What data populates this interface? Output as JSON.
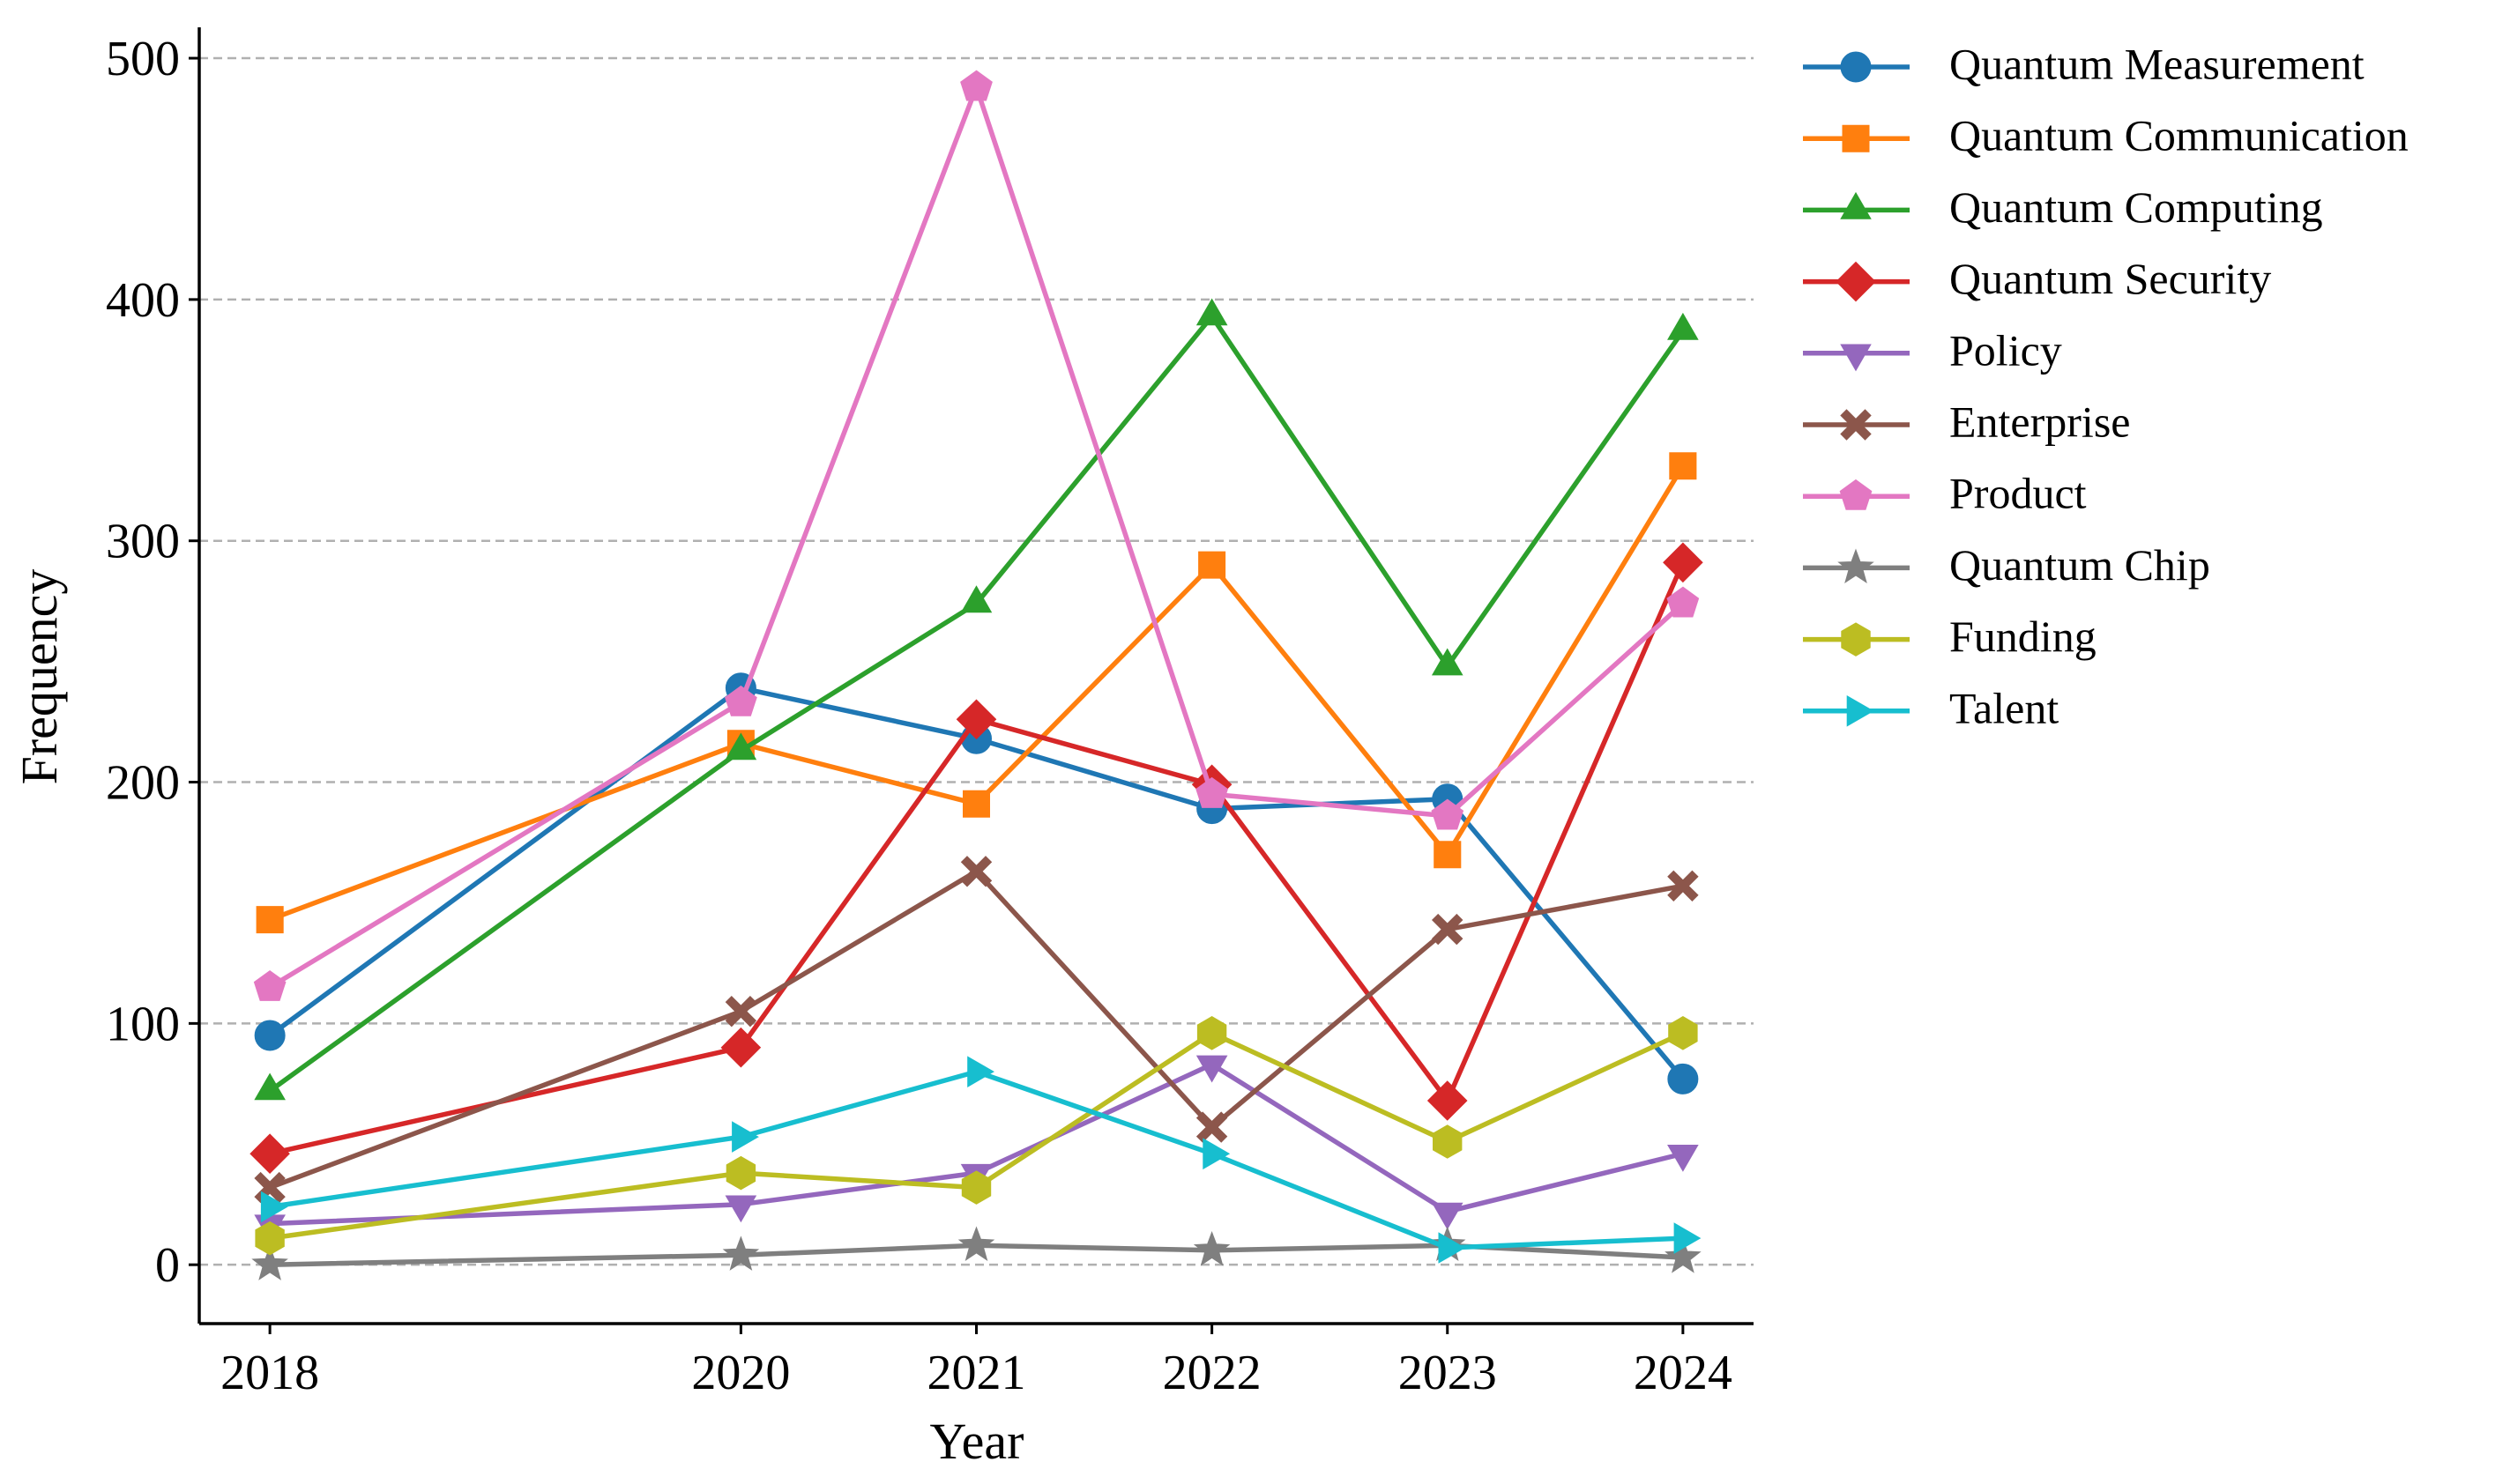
{
  "chart_data": {
    "type": "line",
    "x_label": "Year",
    "y_label": "Frequency",
    "x": [
      2018,
      2020,
      2021,
      2022,
      2023,
      2024
    ],
    "xlim": [
      2017.7,
      2024.3
    ],
    "xticks": [
      2018,
      2020,
      2021,
      2022,
      2023,
      2024
    ],
    "ylim": [
      -24.4,
      512.8
    ],
    "yticks": [
      0,
      100,
      200,
      300,
      400,
      500
    ],
    "grid": true,
    "legend": "outside-right",
    "series": [
      {
        "name": "Quantum Measurement",
        "color": "#1f77b4",
        "marker": "circle",
        "values": [
          95,
          239,
          218,
          189,
          193,
          77
        ]
      },
      {
        "name": "Quantum Communication",
        "color": "#ff7f0e",
        "marker": "square",
        "values": [
          143,
          216,
          191,
          290,
          170,
          331
        ]
      },
      {
        "name": "Quantum Computing",
        "color": "#2ca02c",
        "marker": "triangle-up",
        "values": [
          72,
          213,
          274,
          393,
          248,
          387
        ]
      },
      {
        "name": "Quantum Security",
        "color": "#d62728",
        "marker": "diamond",
        "values": [
          46,
          90,
          226,
          199,
          68,
          291
        ]
      },
      {
        "name": "Policy",
        "color": "#9467bd",
        "marker": "triangle-down",
        "values": [
          17,
          25,
          38,
          83,
          22,
          46
        ]
      },
      {
        "name": "Enterprise",
        "color": "#8c564b",
        "marker": "x",
        "values": [
          32,
          105,
          163,
          57,
          139,
          157
        ]
      },
      {
        "name": "Product",
        "color": "#e377c2",
        "marker": "pentagon",
        "values": [
          115,
          233,
          488,
          195,
          186,
          274
        ]
      },
      {
        "name": "Quantum Chip",
        "color": "#7f7f7f",
        "marker": "star",
        "values": [
          0,
          4,
          8,
          6,
          8,
          3
        ]
      },
      {
        "name": "Funding",
        "color": "#bcbd22",
        "marker": "hexagon",
        "values": [
          11,
          38,
          32,
          96,
          51,
          96
        ]
      },
      {
        "name": "Talent",
        "color": "#17becf",
        "marker": "triangle-right",
        "values": [
          24,
          53,
          80,
          46,
          7,
          11
        ]
      }
    ]
  }
}
